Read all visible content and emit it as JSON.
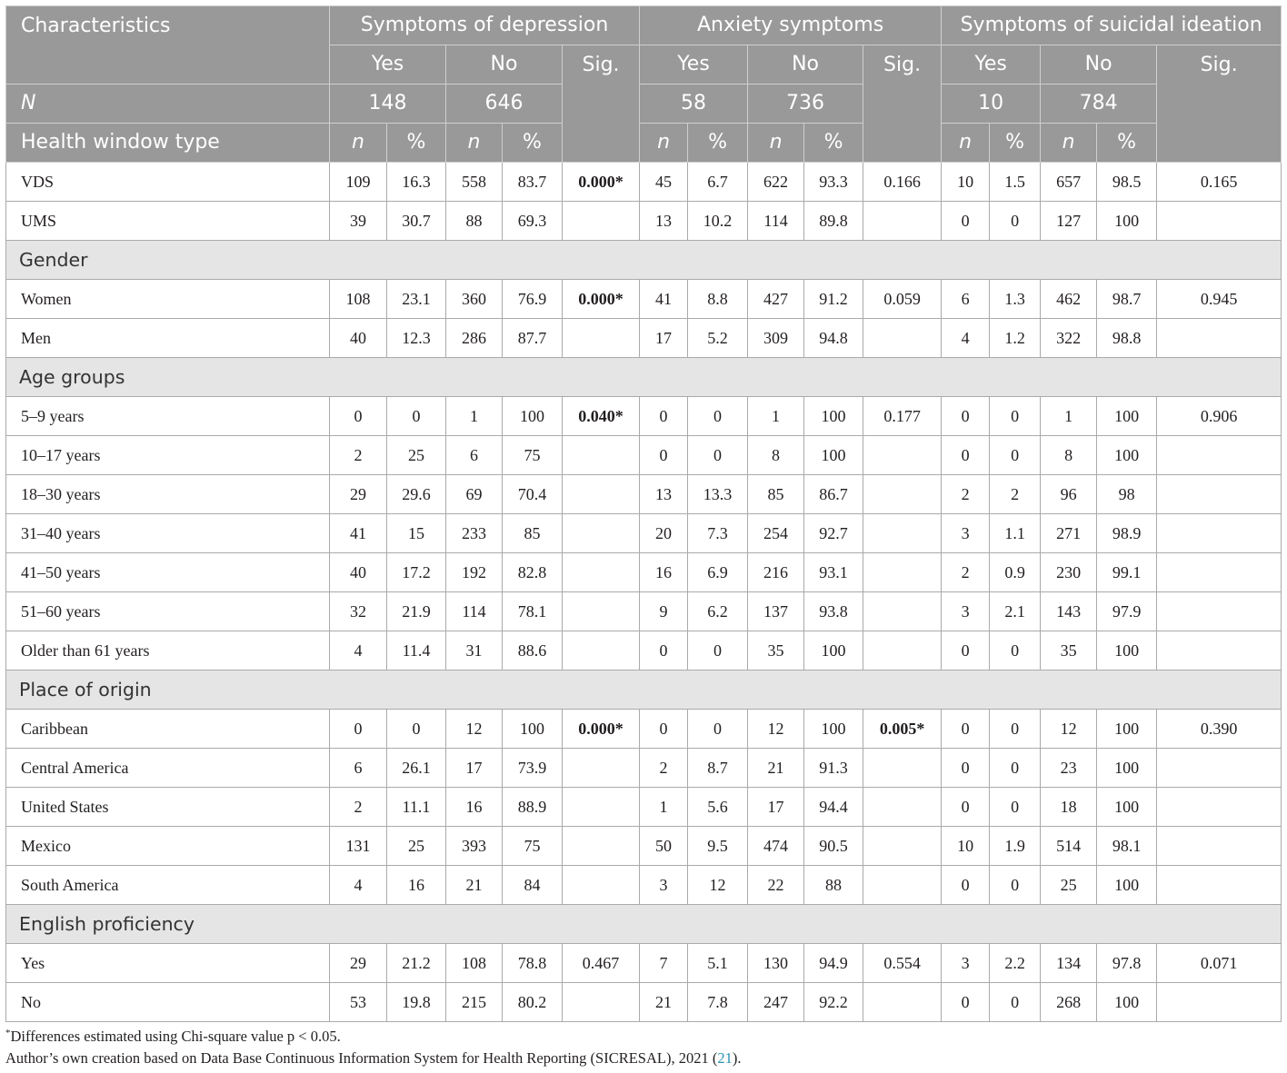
{
  "colors": {
    "header_background": "#999999",
    "header_text": "#ffffff",
    "section_background": "#e5e5e5",
    "reference_link": "#2a93b3"
  },
  "table": {
    "header": {
      "characteristics": "Characteristics",
      "groups": [
        "Symptoms of depression",
        "Anxiety symptoms",
        "Symptoms of suicidal ideation"
      ],
      "yes_label": "Yes",
      "no_label": "No",
      "sig_label": "Sig.",
      "n_row_label": "N",
      "n_values": [
        {
          "yes": "148",
          "no": "646"
        },
        {
          "yes": "58",
          "no": "736"
        },
        {
          "yes": "10",
          "no": "784"
        }
      ],
      "subheader_label": "Health window type",
      "count_label": "n",
      "percent_label": "%"
    },
    "sections": [
      {
        "rows": [
          {
            "label": "VDS",
            "values": [
              "109",
              "16.3",
              "558",
              "83.7",
              "0.000*",
              "45",
              "6.7",
              "622",
              "93.3",
              "0.166",
              "10",
              "1.5",
              "657",
              "98.5",
              "0.165"
            ]
          },
          {
            "label": "UMS",
            "values": [
              "39",
              "30.7",
              "88",
              "69.3",
              "",
              "13",
              "10.2",
              "114",
              "89.8",
              "",
              "0",
              "0",
              "127",
              "100",
              ""
            ]
          }
        ]
      },
      {
        "title": "Gender",
        "rows": [
          {
            "label": "Women",
            "values": [
              "108",
              "23.1",
              "360",
              "76.9",
              "0.000*",
              "41",
              "8.8",
              "427",
              "91.2",
              "0.059",
              "6",
              "1.3",
              "462",
              "98.7",
              "0.945"
            ]
          },
          {
            "label": "Men",
            "values": [
              "40",
              "12.3",
              "286",
              "87.7",
              "",
              "17",
              "5.2",
              "309",
              "94.8",
              "",
              "4",
              "1.2",
              "322",
              "98.8",
              ""
            ]
          }
        ]
      },
      {
        "title": "Age groups",
        "rows": [
          {
            "label": "5–9 years",
            "values": [
              "0",
              "0",
              "1",
              "100",
              "0.040*",
              "0",
              "0",
              "1",
              "100",
              "0.177",
              "0",
              "0",
              "1",
              "100",
              "0.906"
            ]
          },
          {
            "label": "10–17 years",
            "values": [
              "2",
              "25",
              "6",
              "75",
              "",
              "0",
              "0",
              "8",
              "100",
              "",
              "0",
              "0",
              "8",
              "100",
              ""
            ]
          },
          {
            "label": "18–30 years",
            "values": [
              "29",
              "29.6",
              "69",
              "70.4",
              "",
              "13",
              "13.3",
              "85",
              "86.7",
              "",
              "2",
              "2",
              "96",
              "98",
              ""
            ]
          },
          {
            "label": "31–40 years",
            "values": [
              "41",
              "15",
              "233",
              "85",
              "",
              "20",
              "7.3",
              "254",
              "92.7",
              "",
              "3",
              "1.1",
              "271",
              "98.9",
              ""
            ]
          },
          {
            "label": "41–50 years",
            "values": [
              "40",
              "17.2",
              "192",
              "82.8",
              "",
              "16",
              "6.9",
              "216",
              "93.1",
              "",
              "2",
              "0.9",
              "230",
              "99.1",
              ""
            ]
          },
          {
            "label": "51–60 years",
            "values": [
              "32",
              "21.9",
              "114",
              "78.1",
              "",
              "9",
              "6.2",
              "137",
              "93.8",
              "",
              "3",
              "2.1",
              "143",
              "97.9",
              ""
            ]
          },
          {
            "label": "Older than 61 years",
            "values": [
              "4",
              "11.4",
              "31",
              "88.6",
              "",
              "0",
              "0",
              "35",
              "100",
              "",
              "0",
              "0",
              "35",
              "100",
              ""
            ]
          }
        ]
      },
      {
        "title": "Place of origin",
        "rows": [
          {
            "label": "Caribbean",
            "values": [
              "0",
              "0",
              "12",
              "100",
              "0.000*",
              "0",
              "0",
              "12",
              "100",
              "0.005*",
              "0",
              "0",
              "12",
              "100",
              "0.390"
            ]
          },
          {
            "label": "Central America",
            "values": [
              "6",
              "26.1",
              "17",
              "73.9",
              "",
              "2",
              "8.7",
              "21",
              "91.3",
              "",
              "0",
              "0",
              "23",
              "100",
              ""
            ]
          },
          {
            "label": "United States",
            "values": [
              "2",
              "11.1",
              "16",
              "88.9",
              "",
              "1",
              "5.6",
              "17",
              "94.4",
              "",
              "0",
              "0",
              "18",
              "100",
              ""
            ]
          },
          {
            "label": "Mexico",
            "values": [
              "131",
              "25",
              "393",
              "75",
              "",
              "50",
              "9.5",
              "474",
              "90.5",
              "",
              "10",
              "1.9",
              "514",
              "98.1",
              ""
            ]
          },
          {
            "label": "South America",
            "values": [
              "4",
              "16",
              "21",
              "84",
              "",
              "3",
              "12",
              "22",
              "88",
              "",
              "0",
              "0",
              "25",
              "100",
              ""
            ]
          }
        ]
      },
      {
        "title": "English proficiency",
        "rows": [
          {
            "label": "Yes",
            "values": [
              "29",
              "21.2",
              "108",
              "78.8",
              "0.467",
              "7",
              "5.1",
              "130",
              "94.9",
              "0.554",
              "3",
              "2.2",
              "134",
              "97.8",
              "0.071"
            ]
          },
          {
            "label": "No",
            "values": [
              "53",
              "19.8",
              "215",
              "80.2",
              "",
              "21",
              "7.8",
              "247",
              "92.2",
              "",
              "0",
              "0",
              "268",
              "100",
              ""
            ]
          }
        ]
      }
    ]
  },
  "footnotes": {
    "marker": "*",
    "significance_note": "Differences estimated using Chi-square value p < 0.05.",
    "source_text": "Author’s own creation based on Data Base Continuous Information System for Health Reporting (SICRESAL), 2021 (",
    "source_reference": "21",
    "source_end": ")."
  }
}
